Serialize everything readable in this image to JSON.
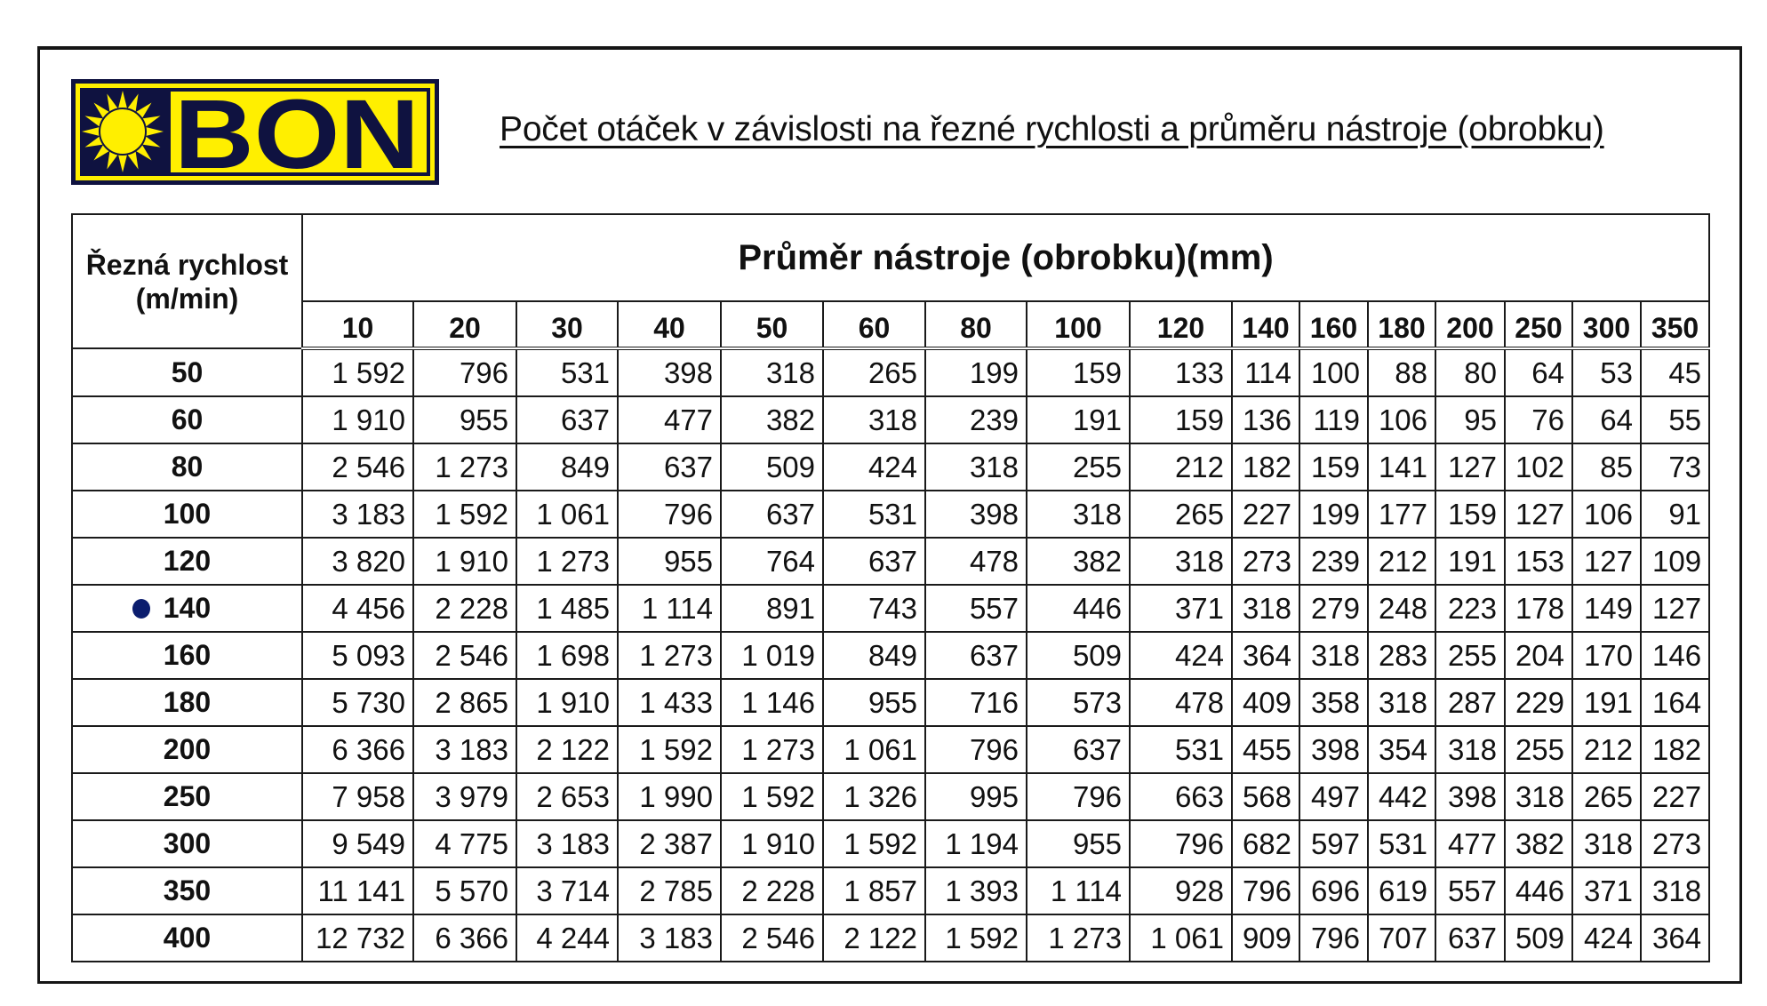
{
  "brand": {
    "name": "BON",
    "colors": {
      "yellow": "#ffef00",
      "navy": "#0f1240"
    }
  },
  "title": "Počet otáček v závislosti na řezné rychlosti a průměru nástroje (obrobku)",
  "table": {
    "row_header": "Řezná rychlost (m/min)",
    "row_header_line1": "Řezná rychlost",
    "row_header_line2": "(m/min)",
    "column_group_header": "Průměr nástroje (obrobku)(mm)",
    "columns": [
      "10",
      "20",
      "30",
      "40",
      "50",
      "60",
      "80",
      "100",
      "120",
      "140",
      "160",
      "180",
      "200",
      "250",
      "300",
      "350"
    ],
    "marked_row": "140",
    "marker_color": "#0b1d6e",
    "rows": [
      {
        "speed": "50",
        "values": [
          "1 592",
          "796",
          "531",
          "398",
          "318",
          "265",
          "199",
          "159",
          "133",
          "114",
          "100",
          "88",
          "80",
          "64",
          "53",
          "45"
        ]
      },
      {
        "speed": "60",
        "values": [
          "1 910",
          "955",
          "637",
          "477",
          "382",
          "318",
          "239",
          "191",
          "159",
          "136",
          "119",
          "106",
          "95",
          "76",
          "64",
          "55"
        ]
      },
      {
        "speed": "80",
        "values": [
          "2 546",
          "1 273",
          "849",
          "637",
          "509",
          "424",
          "318",
          "255",
          "212",
          "182",
          "159",
          "141",
          "127",
          "102",
          "85",
          "73"
        ]
      },
      {
        "speed": "100",
        "values": [
          "3 183",
          "1 592",
          "1 061",
          "796",
          "637",
          "531",
          "398",
          "318",
          "265",
          "227",
          "199",
          "177",
          "159",
          "127",
          "106",
          "91"
        ]
      },
      {
        "speed": "120",
        "values": [
          "3 820",
          "1 910",
          "1 273",
          "955",
          "764",
          "637",
          "478",
          "382",
          "318",
          "273",
          "239",
          "212",
          "191",
          "153",
          "127",
          "109"
        ]
      },
      {
        "speed": "140",
        "values": [
          "4 456",
          "2 228",
          "1 485",
          "1 114",
          "891",
          "743",
          "557",
          "446",
          "371",
          "318",
          "279",
          "248",
          "223",
          "178",
          "149",
          "127"
        ]
      },
      {
        "speed": "160",
        "values": [
          "5 093",
          "2 546",
          "1 698",
          "1 273",
          "1 019",
          "849",
          "637",
          "509",
          "424",
          "364",
          "318",
          "283",
          "255",
          "204",
          "170",
          "146"
        ]
      },
      {
        "speed": "180",
        "values": [
          "5 730",
          "2 865",
          "1 910",
          "1 433",
          "1 146",
          "955",
          "716",
          "573",
          "478",
          "409",
          "358",
          "318",
          "287",
          "229",
          "191",
          "164"
        ]
      },
      {
        "speed": "200",
        "values": [
          "6 366",
          "3 183",
          "2 122",
          "1 592",
          "1 273",
          "1 061",
          "796",
          "637",
          "531",
          "455",
          "398",
          "354",
          "318",
          "255",
          "212",
          "182"
        ]
      },
      {
        "speed": "250",
        "values": [
          "7 958",
          "3 979",
          "2 653",
          "1 990",
          "1 592",
          "1 326",
          "995",
          "796",
          "663",
          "568",
          "497",
          "442",
          "398",
          "318",
          "265",
          "227"
        ]
      },
      {
        "speed": "300",
        "values": [
          "9 549",
          "4 775",
          "3 183",
          "2 387",
          "1 910",
          "1 592",
          "1 194",
          "955",
          "796",
          "682",
          "597",
          "531",
          "477",
          "382",
          "318",
          "273"
        ]
      },
      {
        "speed": "350",
        "values": [
          "11 141",
          "5 570",
          "3 714",
          "2 785",
          "2 228",
          "1 857",
          "1 393",
          "1 114",
          "928",
          "796",
          "696",
          "619",
          "557",
          "446",
          "371",
          "318"
        ]
      },
      {
        "speed": "400",
        "values": [
          "12 732",
          "6 366",
          "4 244",
          "3 183",
          "2 546",
          "2 122",
          "1 592",
          "1 273",
          "1 061",
          "909",
          "796",
          "707",
          "637",
          "509",
          "424",
          "364"
        ]
      }
    ]
  }
}
